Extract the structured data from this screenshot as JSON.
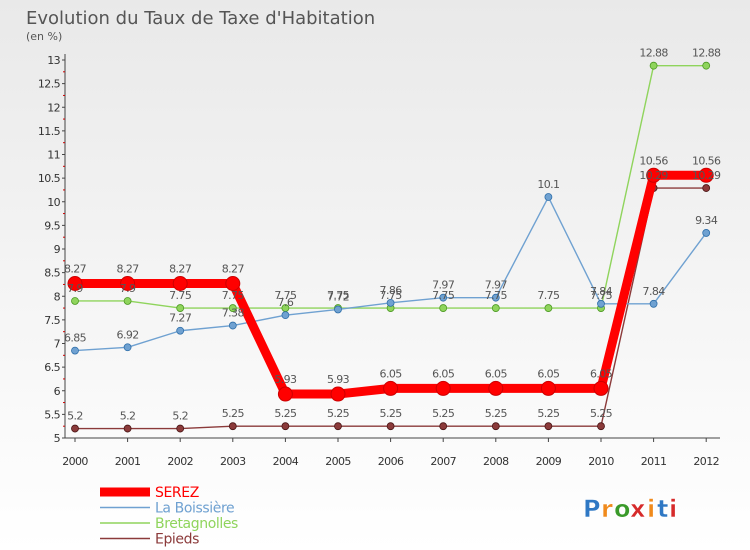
{
  "chart_data": {
    "type": "line",
    "title": "Evolution du Taux de Taxe d'Habitation",
    "subtitle": "(en %)",
    "x": [
      "2000",
      "2001",
      "2002",
      "2003",
      "2004",
      "2005",
      "2006",
      "2007",
      "2008",
      "2009",
      "2010",
      "2011",
      "2012"
    ],
    "ylim": [
      5,
      13
    ],
    "yticks": [
      "5",
      "5.5",
      "6",
      "6.5",
      "7",
      "7.5",
      "8",
      "8.5",
      "9",
      "9.5",
      "10",
      "10.5",
      "11",
      "11.5",
      "12",
      "12.5",
      "13"
    ],
    "grid": false,
    "legend_position": "bottom-left",
    "series": [
      {
        "name": "SEREZ",
        "color": "#ff0000",
        "values": [
          8.27,
          8.27,
          8.27,
          8.27,
          5.93,
          5.93,
          6.05,
          6.05,
          6.05,
          6.05,
          6.05,
          10.56,
          10.56
        ],
        "labels": [
          "8.27",
          "8.27",
          "8.27",
          "8.27",
          "5.93",
          "5.93",
          "6.05",
          "6.05",
          "6.05",
          "6.05",
          "6.05",
          "10.56",
          "10.56"
        ]
      },
      {
        "name": "La Boissière",
        "color": "#6fa1d1",
        "values": [
          6.85,
          6.92,
          7.27,
          7.38,
          7.6,
          7.72,
          7.86,
          7.97,
          7.97,
          10.1,
          7.84,
          7.84,
          9.34
        ],
        "labels": [
          "6.85",
          "6.92",
          "7.27",
          "7.38",
          "7.6",
          "7.72",
          "7.86",
          "7.97",
          "7.97",
          "10.1",
          "7.84",
          "7.84",
          "9.34"
        ]
      },
      {
        "name": "Bretagnolles",
        "color": "#8fd45c",
        "values": [
          7.9,
          7.9,
          7.75,
          7.75,
          7.75,
          7.75,
          7.75,
          7.75,
          7.75,
          7.75,
          7.75,
          12.88,
          12.88
        ],
        "labels": [
          "7.9",
          "7.9",
          "7.75",
          "7.75",
          "7.75",
          "7.75",
          "7.75",
          "7.75",
          "7.75",
          "7.75",
          "7.75",
          "12.88",
          "12.88"
        ]
      },
      {
        "name": "Epieds",
        "color": "#8b3a3a",
        "values": [
          5.2,
          5.2,
          5.2,
          5.25,
          5.25,
          5.25,
          5.25,
          5.25,
          5.25,
          5.25,
          5.25,
          10.29,
          10.29
        ],
        "labels": [
          "5.2",
          "5.2",
          "5.2",
          "5.25",
          "5.25",
          "5.25",
          "5.25",
          "5.25",
          "5.25",
          "5.25",
          "5.25",
          "10.29",
          "10.29"
        ]
      }
    ]
  },
  "logo": {
    "text": "Proxiti",
    "letters": [
      "P",
      "r",
      "o",
      "x",
      "i",
      "t",
      "i"
    ]
  }
}
